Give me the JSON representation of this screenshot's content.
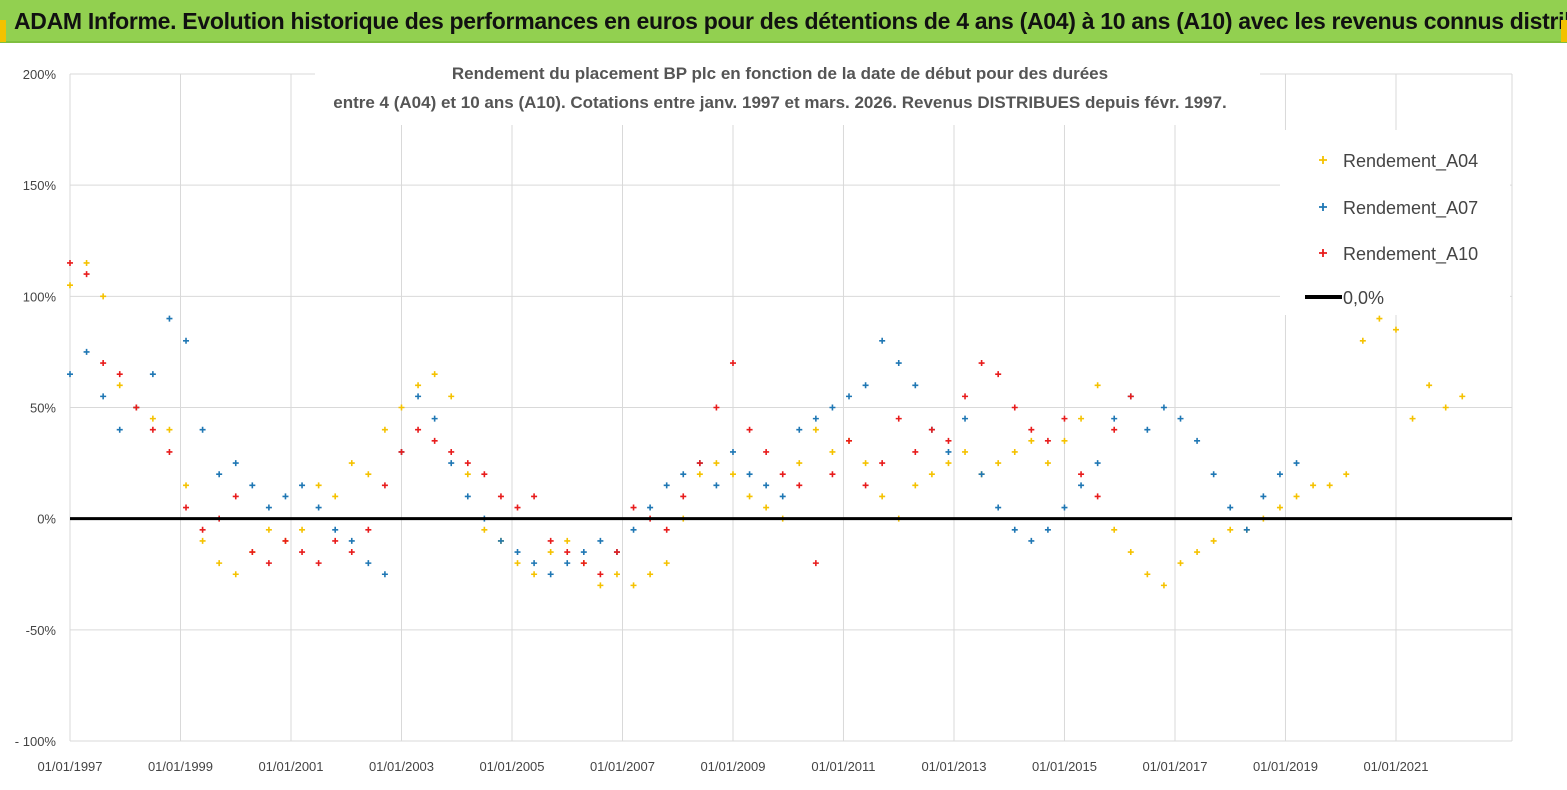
{
  "banner": {
    "title": "ADAM Informe. Evolution historique des performances en euros pour des détentions de 4 ans (A04) à 10 ans (A10) avec les revenus connus distribués"
  },
  "colors": {
    "a04": "#f5c200",
    "a07": "#1f77b4",
    "a10": "#e81c1c",
    "zero": "#000000",
    "banner": "#92d050"
  },
  "chart_data": {
    "type": "scatter",
    "title_line1": "Rendement du placement BP plc en fonction de la date de début pour des durées",
    "title_line2": "entre 4 (A04) et 10 ans (A10). Cotations entre janv. 1997 et mars. 2026. Revenus DISTRIBUES depuis févr. 1997.",
    "x_unit": "years since 01/01/1997",
    "xlim": [
      0,
      26.1
    ],
    "ylim": [
      -100,
      200
    ],
    "y_ticks": [
      {
        "value": 200,
        "label": "200%"
      },
      {
        "value": 150,
        "label": "150%"
      },
      {
        "value": 100,
        "label": "100%"
      },
      {
        "value": 50,
        "label": "50%"
      },
      {
        "value": 0,
        "label": "0%"
      },
      {
        "value": -50,
        "label": "-50%"
      },
      {
        "value": -100,
        "label": "- 100%"
      }
    ],
    "x_ticks": [
      {
        "value": 0,
        "label": "01/01/1997"
      },
      {
        "value": 2,
        "label": "01/01/1999"
      },
      {
        "value": 4,
        "label": "01/01/2001"
      },
      {
        "value": 6,
        "label": "01/01/2003"
      },
      {
        "value": 8,
        "label": "01/01/2005"
      },
      {
        "value": 10,
        "label": "01/01/2007"
      },
      {
        "value": 12,
        "label": "01/01/2009"
      },
      {
        "value": 14,
        "label": "01/01/2011"
      },
      {
        "value": 16,
        "label": "01/01/2013"
      },
      {
        "value": 18,
        "label": "01/01/2015"
      },
      {
        "value": 20,
        "label": "01/01/2017"
      },
      {
        "value": 22,
        "label": "01/01/2019"
      },
      {
        "value": 24,
        "label": "01/01/2021"
      }
    ],
    "legend": [
      "Rendement_A04",
      "Rendement_A07",
      "Rendement_A10",
      "0,0%"
    ],
    "series": [
      {
        "name": "Rendement_A04",
        "x": [
          0.0,
          0.3,
          0.6,
          0.9,
          1.2,
          1.5,
          1.8,
          2.1,
          2.4,
          2.7,
          3.0,
          3.3,
          3.6,
          3.9,
          4.2,
          4.5,
          4.8,
          5.1,
          5.4,
          5.7,
          6.0,
          6.3,
          6.6,
          6.9,
          7.2,
          7.5,
          7.8,
          8.1,
          8.4,
          8.7,
          9.0,
          9.3,
          9.6,
          9.9,
          10.2,
          10.5,
          10.8,
          11.1,
          11.4,
          11.7,
          12.0,
          12.3,
          12.6,
          12.9,
          13.2,
          13.5,
          13.8,
          14.1,
          14.4,
          14.7,
          15.0,
          15.3,
          15.6,
          15.9,
          16.2,
          16.5,
          16.8,
          17.1,
          17.4,
          17.7,
          18.0,
          18.3,
          18.6,
          18.9,
          19.2,
          19.5,
          19.8,
          20.1,
          20.4,
          20.7,
          21.0,
          21.3,
          21.6,
          21.9,
          22.2,
          22.5,
          22.8,
          23.1,
          23.4,
          23.7,
          24.0,
          24.3,
          24.6,
          24.9,
          25.2
        ],
        "y": [
          105,
          115,
          100,
          60,
          50,
          45,
          40,
          15,
          -10,
          -20,
          -25,
          -15,
          -5,
          -10,
          -5,
          15,
          10,
          25,
          20,
          40,
          50,
          60,
          65,
          55,
          20,
          -5,
          -10,
          -20,
          -25,
          -15,
          -10,
          -20,
          -30,
          -25,
          -30,
          -25,
          -20,
          0,
          20,
          25,
          20,
          10,
          5,
          0,
          25,
          40,
          30,
          35,
          25,
          10,
          0,
          15,
          20,
          25,
          30,
          20,
          25,
          30,
          35,
          25,
          35,
          45,
          60,
          -5,
          -15,
          -25,
          -30,
          -20,
          -15,
          -10,
          -5,
          -5,
          0,
          5,
          10,
          15,
          15,
          20,
          80,
          90,
          85,
          45,
          60,
          50,
          55
        ]
      },
      {
        "name": "Rendement_A07",
        "x": [
          0.0,
          0.3,
          0.6,
          0.9,
          1.2,
          1.5,
          1.8,
          2.1,
          2.4,
          2.7,
          3.0,
          3.3,
          3.6,
          3.9,
          4.2,
          4.5,
          4.8,
          5.1,
          5.4,
          5.7,
          6.0,
          6.3,
          6.6,
          6.9,
          7.2,
          7.5,
          7.8,
          8.1,
          8.4,
          8.7,
          9.0,
          9.3,
          9.6,
          9.9,
          10.2,
          10.5,
          10.8,
          11.1,
          11.4,
          11.7,
          12.0,
          12.3,
          12.6,
          12.9,
          13.2,
          13.5,
          13.8,
          14.1,
          14.4,
          14.7,
          15.0,
          15.3,
          15.6,
          15.9,
          16.2,
          16.5,
          16.8,
          17.1,
          17.4,
          17.7,
          18.0,
          18.3,
          18.6,
          18.9,
          19.2,
          19.5,
          19.8,
          20.1,
          20.4,
          20.7,
          21.0,
          21.3,
          21.6,
          21.9,
          22.2
        ],
        "y": [
          65,
          75,
          55,
          40,
          50,
          65,
          90,
          80,
          40,
          20,
          25,
          15,
          5,
          10,
          15,
          5,
          -5,
          -10,
          -20,
          -25,
          30,
          55,
          45,
          25,
          10,
          0,
          -10,
          -15,
          -20,
          -25,
          -20,
          -15,
          -10,
          -15,
          -5,
          5,
          15,
          20,
          25,
          15,
          30,
          20,
          15,
          10,
          40,
          45,
          50,
          55,
          60,
          80,
          70,
          60,
          40,
          30,
          45,
          20,
          5,
          -5,
          -10,
          -5,
          5,
          15,
          25,
          45,
          55,
          40,
          50,
          45,
          35,
          20,
          5,
          -5,
          10,
          20,
          25
        ]
      },
      {
        "name": "Rendement_A10",
        "x": [
          0.0,
          0.3,
          0.6,
          0.9,
          1.2,
          1.5,
          1.8,
          2.1,
          2.4,
          2.7,
          3.0,
          3.3,
          3.6,
          3.9,
          4.2,
          4.5,
          4.8,
          5.1,
          5.4,
          5.7,
          6.0,
          6.3,
          6.6,
          6.9,
          7.2,
          7.5,
          7.8,
          8.1,
          8.4,
          8.7,
          9.0,
          9.3,
          9.6,
          9.9,
          10.2,
          10.5,
          10.8,
          11.1,
          11.4,
          11.7,
          12.0,
          12.3,
          12.6,
          12.9,
          13.2,
          13.5,
          13.8,
          14.1,
          14.4,
          14.7,
          15.0,
          15.3,
          15.6,
          15.9,
          16.2,
          16.5,
          16.8,
          17.1,
          17.4,
          17.7,
          18.0,
          18.3,
          18.6,
          18.9,
          19.2
        ],
        "y": [
          115,
          110,
          70,
          65,
          50,
          40,
          30,
          5,
          -5,
          0,
          10,
          -15,
          -20,
          -10,
          -15,
          -20,
          -10,
          -15,
          -5,
          15,
          30,
          40,
          35,
          30,
          25,
          20,
          10,
          5,
          10,
          -10,
          -15,
          -20,
          -25,
          -15,
          5,
          0,
          -5,
          10,
          25,
          50,
          70,
          40,
          30,
          20,
          15,
          -20,
          20,
          35,
          15,
          25,
          45,
          30,
          40,
          35,
          55,
          70,
          65,
          50,
          40,
          35,
          45,
          20,
          10,
          40,
          55
        ]
      },
      {
        "name": "0,0%",
        "x": [
          0,
          26.1
        ],
        "y": [
          0,
          0
        ]
      }
    ]
  }
}
